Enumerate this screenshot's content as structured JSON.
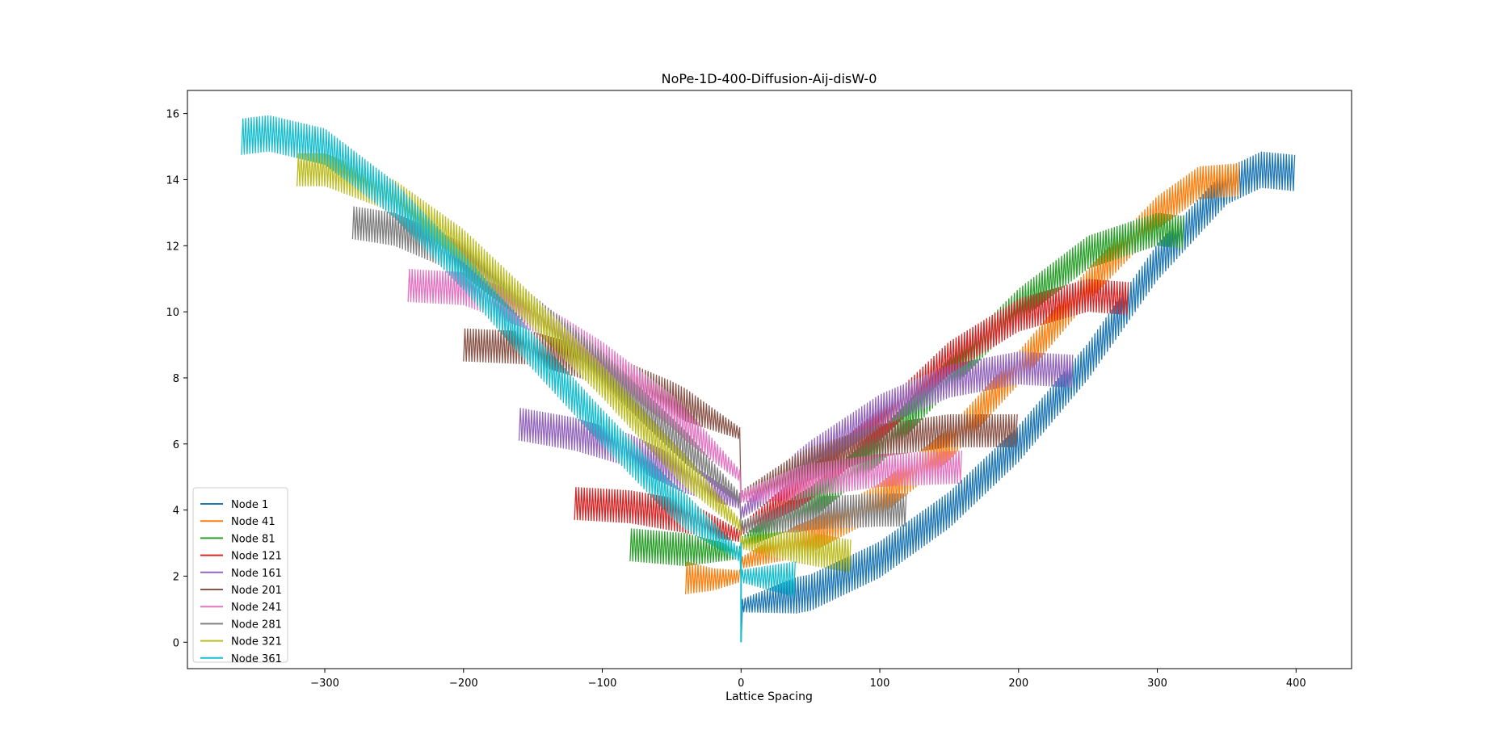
{
  "chart_data": {
    "type": "line",
    "title": "NoPe-1D-400-Diffusion-Aij-disW-0",
    "xlabel": "Lattice Spacing",
    "ylabel": "",
    "xlim": [
      -399,
      440
    ],
    "ylim": [
      -0.8,
      16.7
    ],
    "xticks": [
      -300,
      -200,
      -100,
      0,
      100,
      200,
      300,
      400
    ],
    "xtick_labels": [
      "−300",
      "−200",
      "−100",
      "0",
      "100",
      "200",
      "300",
      "400"
    ],
    "yticks": [
      0,
      2,
      4,
      6,
      8,
      10,
      12,
      14,
      16
    ],
    "ytick_labels": [
      "0",
      "2",
      "4",
      "6",
      "8",
      "10",
      "12",
      "14",
      "16"
    ],
    "grid": false,
    "legend_position": "lower-left",
    "n_nodes": 400,
    "series": [
      {
        "name": "Node 1",
        "node": 1,
        "color": "#1f77b4",
        "band_amplitude": 0.55,
        "left_envelope": [],
        "right_envelope": [
          [
            0,
            1.1
          ],
          [
            50,
            1.5
          ],
          [
            100,
            2.5
          ],
          [
            150,
            4.0
          ],
          [
            200,
            6.0
          ],
          [
            250,
            8.5
          ],
          [
            300,
            11.5
          ],
          [
            350,
            13.8
          ],
          [
            375,
            14.3
          ],
          [
            399,
            14.2
          ]
        ]
      },
      {
        "name": "Node 41",
        "node": 41,
        "color": "#ff7f0e",
        "band_amplitude": 0.5,
        "left_envelope": [
          [
            0,
            2.0
          ],
          [
            -20,
            1.9
          ],
          [
            -40,
            1.95
          ]
        ],
        "right_envelope": [
          [
            0,
            2.4
          ],
          [
            50,
            3.2
          ],
          [
            100,
            4.3
          ],
          [
            150,
            6.0
          ],
          [
            200,
            8.3
          ],
          [
            250,
            10.8
          ],
          [
            300,
            13.0
          ],
          [
            330,
            13.9
          ],
          [
            359,
            14.0
          ]
        ]
      },
      {
        "name": "Node 81",
        "node": 81,
        "color": "#2ca02c",
        "band_amplitude": 0.5,
        "left_envelope": [
          [
            0,
            2.7
          ],
          [
            -40,
            2.8
          ],
          [
            -80,
            2.95
          ]
        ],
        "right_envelope": [
          [
            0,
            3.0
          ],
          [
            50,
            4.2
          ],
          [
            100,
            5.9
          ],
          [
            150,
            8.1
          ],
          [
            200,
            10.2
          ],
          [
            250,
            11.8
          ],
          [
            300,
            12.5
          ],
          [
            319,
            12.4
          ]
        ]
      },
      {
        "name": "Node 121",
        "node": 121,
        "color": "#d62728",
        "band_amplitude": 0.5,
        "left_envelope": [
          [
            0,
            3.2
          ],
          [
            -40,
            3.8
          ],
          [
            -80,
            4.1
          ],
          [
            -120,
            4.2
          ]
        ],
        "right_envelope": [
          [
            0,
            3.4
          ],
          [
            50,
            4.8
          ],
          [
            100,
            6.6
          ],
          [
            150,
            8.6
          ],
          [
            200,
            9.9
          ],
          [
            250,
            10.5
          ],
          [
            279,
            10.4
          ]
        ]
      },
      {
        "name": "Node 161",
        "node": 161,
        "color": "#9467bd",
        "band_amplitude": 0.5,
        "left_envelope": [
          [
            0,
            4.2
          ],
          [
            -40,
            5.0
          ],
          [
            -80,
            5.8
          ],
          [
            -120,
            6.3
          ],
          [
            -160,
            6.6
          ]
        ],
        "right_envelope": [
          [
            0,
            3.9
          ],
          [
            50,
            5.6
          ],
          [
            100,
            7.0
          ],
          [
            150,
            7.9
          ],
          [
            200,
            8.3
          ],
          [
            239,
            8.2
          ]
        ]
      },
      {
        "name": "Node 201",
        "node": 201,
        "color": "#8c564b",
        "band_amplitude": 0.5,
        "left_envelope": [
          [
            0,
            6.3
          ],
          [
            -50,
            7.4
          ],
          [
            -100,
            8.3
          ],
          [
            -150,
            8.9
          ],
          [
            -200,
            9.0
          ]
        ],
        "right_envelope": [
          [
            0,
            4.4
          ],
          [
            50,
            5.4
          ],
          [
            100,
            6.1
          ],
          [
            150,
            6.4
          ],
          [
            199,
            6.4
          ]
        ]
      },
      {
        "name": "Node 241",
        "node": 241,
        "color": "#e377c2",
        "band_amplitude": 0.5,
        "left_envelope": [
          [
            0,
            5.0
          ],
          [
            -50,
            7.0
          ],
          [
            -100,
            8.6
          ],
          [
            -150,
            9.9
          ],
          [
            -200,
            10.7
          ],
          [
            -240,
            10.8
          ]
        ],
        "right_envelope": [
          [
            0,
            4.4
          ],
          [
            50,
            4.9
          ],
          [
            100,
            5.2
          ],
          [
            159,
            5.3
          ]
        ]
      },
      {
        "name": "Node 281",
        "node": 281,
        "color": "#7f7f7f",
        "band_amplitude": 0.5,
        "left_envelope": [
          [
            0,
            4.3
          ],
          [
            -50,
            6.3
          ],
          [
            -100,
            8.3
          ],
          [
            -150,
            10.0
          ],
          [
            -200,
            11.6
          ],
          [
            -250,
            12.5
          ],
          [
            -280,
            12.7
          ]
        ],
        "right_envelope": [
          [
            0,
            3.5
          ],
          [
            50,
            3.9
          ],
          [
            100,
            4.0
          ],
          [
            119,
            4.0
          ]
        ]
      },
      {
        "name": "Node 321",
        "node": 321,
        "color": "#bcbd22",
        "band_amplitude": 0.5,
        "left_envelope": [
          [
            0,
            3.5
          ],
          [
            -50,
            5.6
          ],
          [
            -100,
            7.9
          ],
          [
            -150,
            10.0
          ],
          [
            -200,
            12.0
          ],
          [
            -250,
            13.5
          ],
          [
            -300,
            14.3
          ],
          [
            -320,
            14.3
          ]
        ],
        "right_envelope": [
          [
            0,
            3.0
          ],
          [
            40,
            2.9
          ],
          [
            79,
            2.6
          ]
        ]
      },
      {
        "name": "Node 361",
        "node": 361,
        "color": "#17becf",
        "band_amplitude": 0.55,
        "left_envelope": [
          [
            0,
            2.6
          ],
          [
            -50,
            4.3
          ],
          [
            -100,
            6.5
          ],
          [
            -150,
            8.8
          ],
          [
            -200,
            11.2
          ],
          [
            -250,
            13.4
          ],
          [
            -300,
            15.0
          ],
          [
            -340,
            15.4
          ],
          [
            -360,
            15.3
          ]
        ],
        "right_envelope": [
          [
            0,
            2.0
          ],
          [
            39,
            1.9
          ]
        ]
      }
    ]
  }
}
